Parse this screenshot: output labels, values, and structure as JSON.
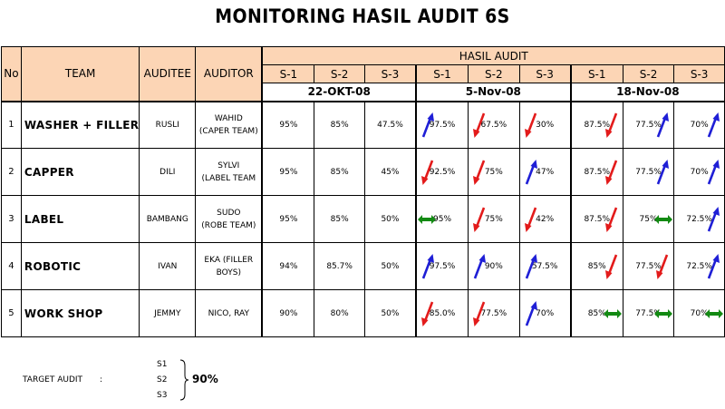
{
  "title": "MONITORING HASIL AUDIT 6S",
  "headers": {
    "no": "No",
    "team": "TEAM",
    "auditee": "AUDITEE",
    "auditor": "AUDITOR",
    "hasil_audit": "HASIL AUDIT",
    "s_labels": [
      "S-1",
      "S-2",
      "S-3"
    ],
    "dates": [
      "22-OKT-08",
      "5-Nov-08",
      "18-Nov-08"
    ]
  },
  "colors": {
    "header_bg": "#fcd5b5",
    "up": "#1f1fd6",
    "down": "#e31b1b",
    "same": "#138a13"
  },
  "rows": [
    {
      "no": "1",
      "team": "WASHER + FILLER",
      "auditee": "RUSLI",
      "auditor_l1": "WAHID",
      "auditor_l2": "(CAPER TEAM)",
      "p1": [
        {
          "v": "95%",
          "t": ""
        },
        {
          "v": "85%",
          "t": ""
        },
        {
          "v": "47.5%",
          "t": ""
        }
      ],
      "p2": [
        {
          "v": "97.5%",
          "t": "up"
        },
        {
          "v": "67.5%",
          "t": "down"
        },
        {
          "v": "30%",
          "t": "down"
        }
      ],
      "p3": [
        {
          "v": "87.5%",
          "t": "down"
        },
        {
          "v": "77.5%",
          "t": "up"
        },
        {
          "v": "70%",
          "t": "up"
        }
      ]
    },
    {
      "no": "2",
      "team": "CAPPER",
      "auditee": "DILI",
      "auditor_l1": "SYLVI",
      "auditor_l2": "(LABEL TEAM",
      "p1": [
        {
          "v": "95%",
          "t": ""
        },
        {
          "v": "85%",
          "t": ""
        },
        {
          "v": "45%",
          "t": ""
        }
      ],
      "p2": [
        {
          "v": "92.5%",
          "t": "down"
        },
        {
          "v": "75%",
          "t": "down"
        },
        {
          "v": "47%",
          "t": "up"
        }
      ],
      "p3": [
        {
          "v": "87.5%",
          "t": "down"
        },
        {
          "v": "77.5%",
          "t": "up"
        },
        {
          "v": "70%",
          "t": "up"
        }
      ]
    },
    {
      "no": "3",
      "team": "LABEL",
      "auditee": "BAMBANG",
      "auditor_l1": "SUDO",
      "auditor_l2": "(ROBE TEAM)",
      "p1": [
        {
          "v": "95%",
          "t": ""
        },
        {
          "v": "85%",
          "t": ""
        },
        {
          "v": "50%",
          "t": ""
        }
      ],
      "p2": [
        {
          "v": "95%",
          "t": "same"
        },
        {
          "v": "75%",
          "t": "down"
        },
        {
          "v": "42%",
          "t": "down"
        }
      ],
      "p3": [
        {
          "v": "87.5%",
          "t": "down"
        },
        {
          "v": "75%",
          "t": "same"
        },
        {
          "v": "72.5%",
          "t": "up"
        }
      ]
    },
    {
      "no": "4",
      "team": "ROBOTIC",
      "auditee": "IVAN",
      "auditor_l1": "EKA (FILLER",
      "auditor_l2": "BOYS)",
      "p1": [
        {
          "v": "94%",
          "t": ""
        },
        {
          "v": "85.7%",
          "t": ""
        },
        {
          "v": "50%",
          "t": ""
        }
      ],
      "p2": [
        {
          "v": "97.5%",
          "t": "up"
        },
        {
          "v": "90%",
          "t": "up"
        },
        {
          "v": "57.5%",
          "t": "up"
        }
      ],
      "p3": [
        {
          "v": "85%",
          "t": "down"
        },
        {
          "v": "77.5%",
          "t": "down"
        },
        {
          "v": "72.5%",
          "t": "up"
        }
      ]
    },
    {
      "no": "5",
      "team": "WORK SHOP",
      "auditee": "JEMMY",
      "auditor_l1": "NICO, RAY",
      "auditor_l2": "",
      "p1": [
        {
          "v": "90%",
          "t": ""
        },
        {
          "v": "80%",
          "t": ""
        },
        {
          "v": "50%",
          "t": ""
        }
      ],
      "p2": [
        {
          "v": "85.0%",
          "t": "down"
        },
        {
          "v": "77.5%",
          "t": "down"
        },
        {
          "v": "70%",
          "t": "up"
        }
      ],
      "p3": [
        {
          "v": "85%",
          "t": "same"
        },
        {
          "v": "77.5%",
          "t": "same"
        },
        {
          "v": "70%",
          "t": "same"
        }
      ]
    }
  ],
  "target": {
    "label": "TARGET AUDIT",
    "colon": ":",
    "items": [
      "S1",
      "S2",
      "S3"
    ],
    "value": "90%"
  }
}
